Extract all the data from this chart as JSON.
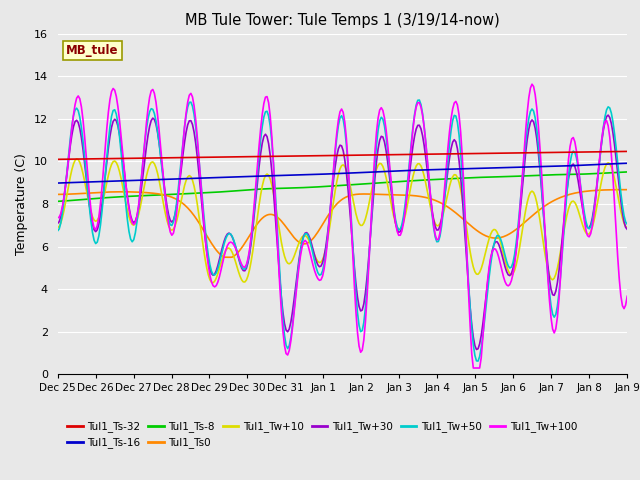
{
  "title": "MB Tule Tower: Tule Temps 1 (3/19/14-now)",
  "ylabel": "Temperature (C)",
  "watermark": "MB_tule",
  "ylim": [
    0,
    16
  ],
  "yticks": [
    0,
    2,
    4,
    6,
    8,
    10,
    12,
    14,
    16
  ],
  "bg_color": "#e8e8e8",
  "grid_color": "white",
  "series": [
    {
      "name": "Tul1_Ts-32",
      "color": "#dd0000",
      "lw": 1.2,
      "zorder": 5
    },
    {
      "name": "Tul1_Ts-16",
      "color": "#0000cc",
      "lw": 1.2,
      "zorder": 4
    },
    {
      "name": "Tul1_Ts-8",
      "color": "#00cc00",
      "lw": 1.2,
      "zorder": 3
    },
    {
      "name": "Tul1_Ts0",
      "color": "#ff8800",
      "lw": 1.2,
      "zorder": 3
    },
    {
      "name": "Tul1_Tw+10",
      "color": "#dddd00",
      "lw": 1.2,
      "zorder": 3
    },
    {
      "name": "Tul1_Tw+30",
      "color": "#9900cc",
      "lw": 1.2,
      "zorder": 3
    },
    {
      "name": "Tul1_Tw+50",
      "color": "#00cccc",
      "lw": 1.2,
      "zorder": 3
    },
    {
      "name": "Tul1_Tw+100",
      "color": "#ff00ff",
      "lw": 1.2,
      "zorder": 3
    }
  ],
  "xtick_labels": [
    "Dec 25",
    "Dec 26",
    "Dec 27",
    "Dec 28",
    "Dec 29",
    "Dec 30",
    "Dec 31",
    "Jan 1",
    "Jan 2",
    "Jan 3",
    "Jan 4",
    "Jan 5",
    "Jan 6",
    "Jan 7",
    "Jan 8",
    "Jan 9"
  ],
  "figsize": [
    6.4,
    4.8
  ],
  "dpi": 100
}
